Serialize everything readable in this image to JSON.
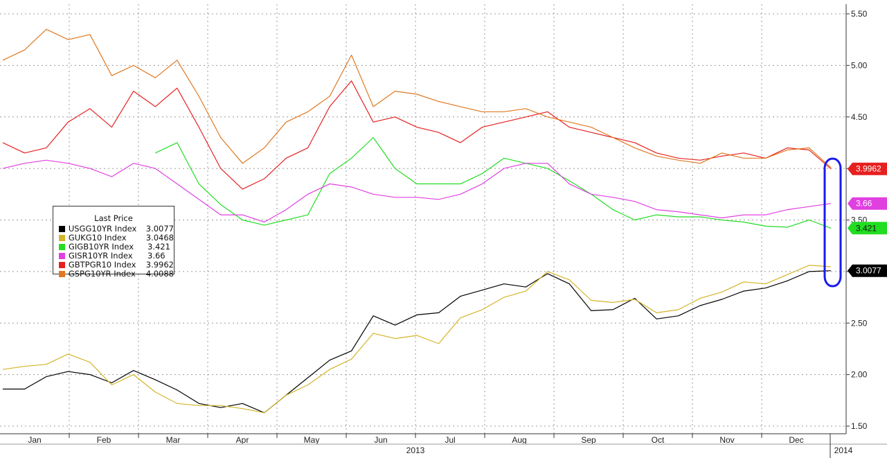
{
  "chart_data": {
    "type": "line",
    "x_labels": [
      "Jan",
      "Feb",
      "Mar",
      "Apr",
      "May",
      "Jun",
      "Jul",
      "Aug",
      "Sep",
      "Oct",
      "Nov",
      "Dec"
    ],
    "year_labels": [
      "2013",
      "2014"
    ],
    "y_ticks": [
      "1.50",
      "2.00",
      "2.50",
      "3.00",
      "3.50",
      "4.00",
      "4.50",
      "5.00",
      "5.50"
    ],
    "ylim": [
      1.5,
      5.5
    ],
    "grid": true,
    "legend_title": "Last Price",
    "legend_placement": "left",
    "series": [
      {
        "name": "USGG10YR Index",
        "last": "3.0077",
        "color": "#000000",
        "values": [
          1.86,
          1.86,
          1.98,
          2.03,
          2.0,
          1.92,
          2.04,
          1.95,
          1.85,
          1.72,
          1.68,
          1.72,
          1.63,
          1.8,
          1.97,
          2.14,
          2.23,
          2.57,
          2.48,
          2.58,
          2.6,
          2.76,
          2.82,
          2.88,
          2.85,
          2.98,
          2.88,
          2.62,
          2.63,
          2.74,
          2.54,
          2.57,
          2.67,
          2.73,
          2.81,
          2.84,
          2.91,
          3.0,
          3.0077
        ]
      },
      {
        "name": "GUKG10 Index",
        "last": "3.0468",
        "color": "#d4b428",
        "values": [
          2.05,
          2.08,
          2.1,
          2.2,
          2.12,
          1.9,
          2.0,
          1.83,
          1.72,
          1.7,
          1.7,
          1.67,
          1.63,
          1.8,
          1.9,
          2.05,
          2.15,
          2.4,
          2.35,
          2.38,
          2.3,
          2.55,
          2.63,
          2.75,
          2.81,
          3.0,
          2.92,
          2.72,
          2.7,
          2.73,
          2.6,
          2.63,
          2.74,
          2.8,
          2.9,
          2.88,
          2.97,
          3.06,
          3.0468
        ]
      },
      {
        "name": "GIGB10YR Index",
        "last": "3.421",
        "color": "#22dd22",
        "values": [
          null,
          null,
          null,
          null,
          null,
          null,
          null,
          4.15,
          4.25,
          3.85,
          3.65,
          3.5,
          3.45,
          3.5,
          3.55,
          3.95,
          4.1,
          4.3,
          4.0,
          3.85,
          3.85,
          3.85,
          3.95,
          4.1,
          4.05,
          4.0,
          3.88,
          3.75,
          3.6,
          3.5,
          3.55,
          3.53,
          3.53,
          3.5,
          3.48,
          3.44,
          3.43,
          3.5,
          3.421
        ]
      },
      {
        "name": "GISR10YR Index",
        "last": "3.66",
        "color": "#e040e0",
        "values": [
          4.0,
          4.05,
          4.08,
          4.05,
          4.0,
          3.92,
          4.05,
          4.0,
          3.85,
          3.7,
          3.55,
          3.55,
          3.48,
          3.6,
          3.75,
          3.85,
          3.82,
          3.75,
          3.72,
          3.72,
          3.7,
          3.75,
          3.85,
          4.0,
          4.05,
          4.05,
          3.85,
          3.75,
          3.72,
          3.68,
          3.6,
          3.58,
          3.55,
          3.52,
          3.55,
          3.55,
          3.6,
          3.63,
          3.66
        ]
      },
      {
        "name": "GBTPGR10 Index",
        "last": "3.9962",
        "color": "#e62020",
        "values": [
          4.25,
          4.15,
          4.2,
          4.45,
          4.58,
          4.4,
          4.75,
          4.6,
          4.78,
          4.4,
          4.0,
          3.8,
          3.9,
          4.1,
          4.2,
          4.6,
          4.85,
          4.45,
          4.5,
          4.4,
          4.35,
          4.25,
          4.4,
          4.45,
          4.5,
          4.55,
          4.4,
          4.35,
          4.3,
          4.25,
          4.15,
          4.1,
          4.08,
          4.12,
          4.15,
          4.1,
          4.2,
          4.18,
          3.9962
        ]
      },
      {
        "name": "GSPG10YR Index",
        "last": "4.0088",
        "color": "#e07820",
        "values": [
          5.05,
          5.15,
          5.35,
          5.25,
          5.3,
          4.9,
          5.0,
          4.88,
          5.05,
          4.7,
          4.3,
          4.05,
          4.2,
          4.45,
          4.55,
          4.7,
          5.1,
          4.6,
          4.75,
          4.72,
          4.65,
          4.6,
          4.55,
          4.55,
          4.58,
          4.5,
          4.45,
          4.4,
          4.3,
          4.2,
          4.12,
          4.08,
          4.05,
          4.15,
          4.1,
          4.1,
          4.18,
          4.2,
          4.0088
        ]
      }
    ]
  }
}
